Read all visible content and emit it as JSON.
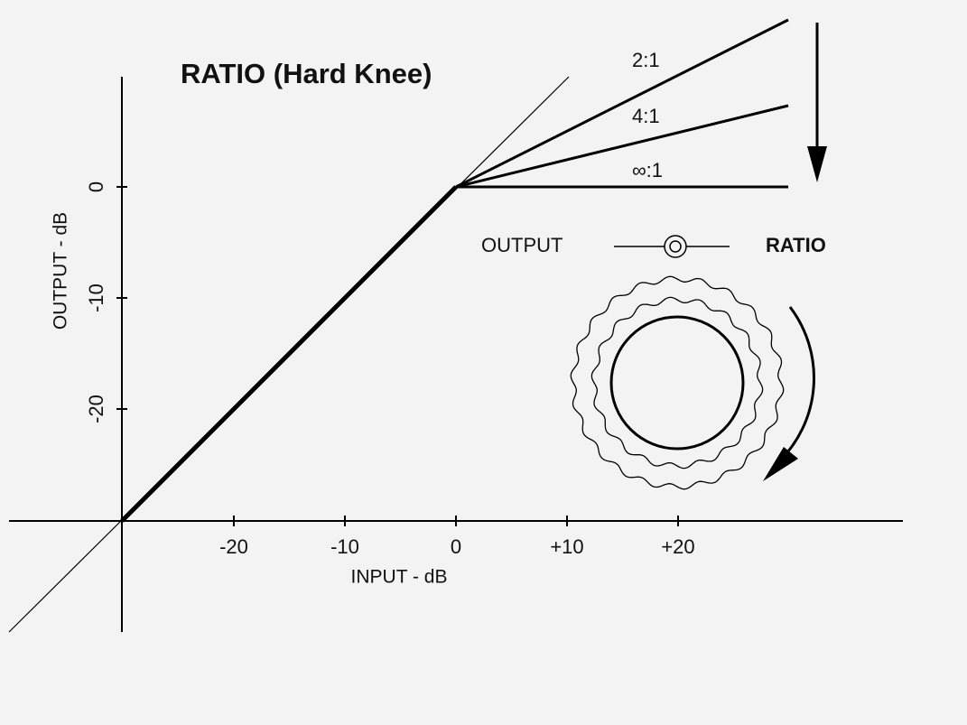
{
  "title": "RATIO (Hard Knee)",
  "axes": {
    "x_label": "INPUT - dB",
    "y_label": "OUTPUT - dB",
    "x_ticks": [
      "-20",
      "-10",
      "0",
      "+10",
      "+20"
    ],
    "y_ticks": [
      "0",
      "-10",
      "-20"
    ]
  },
  "curves": [
    "2:1",
    "4:1",
    "∞:1"
  ],
  "control": {
    "left": "OUTPUT",
    "right": "RATIO"
  }
}
